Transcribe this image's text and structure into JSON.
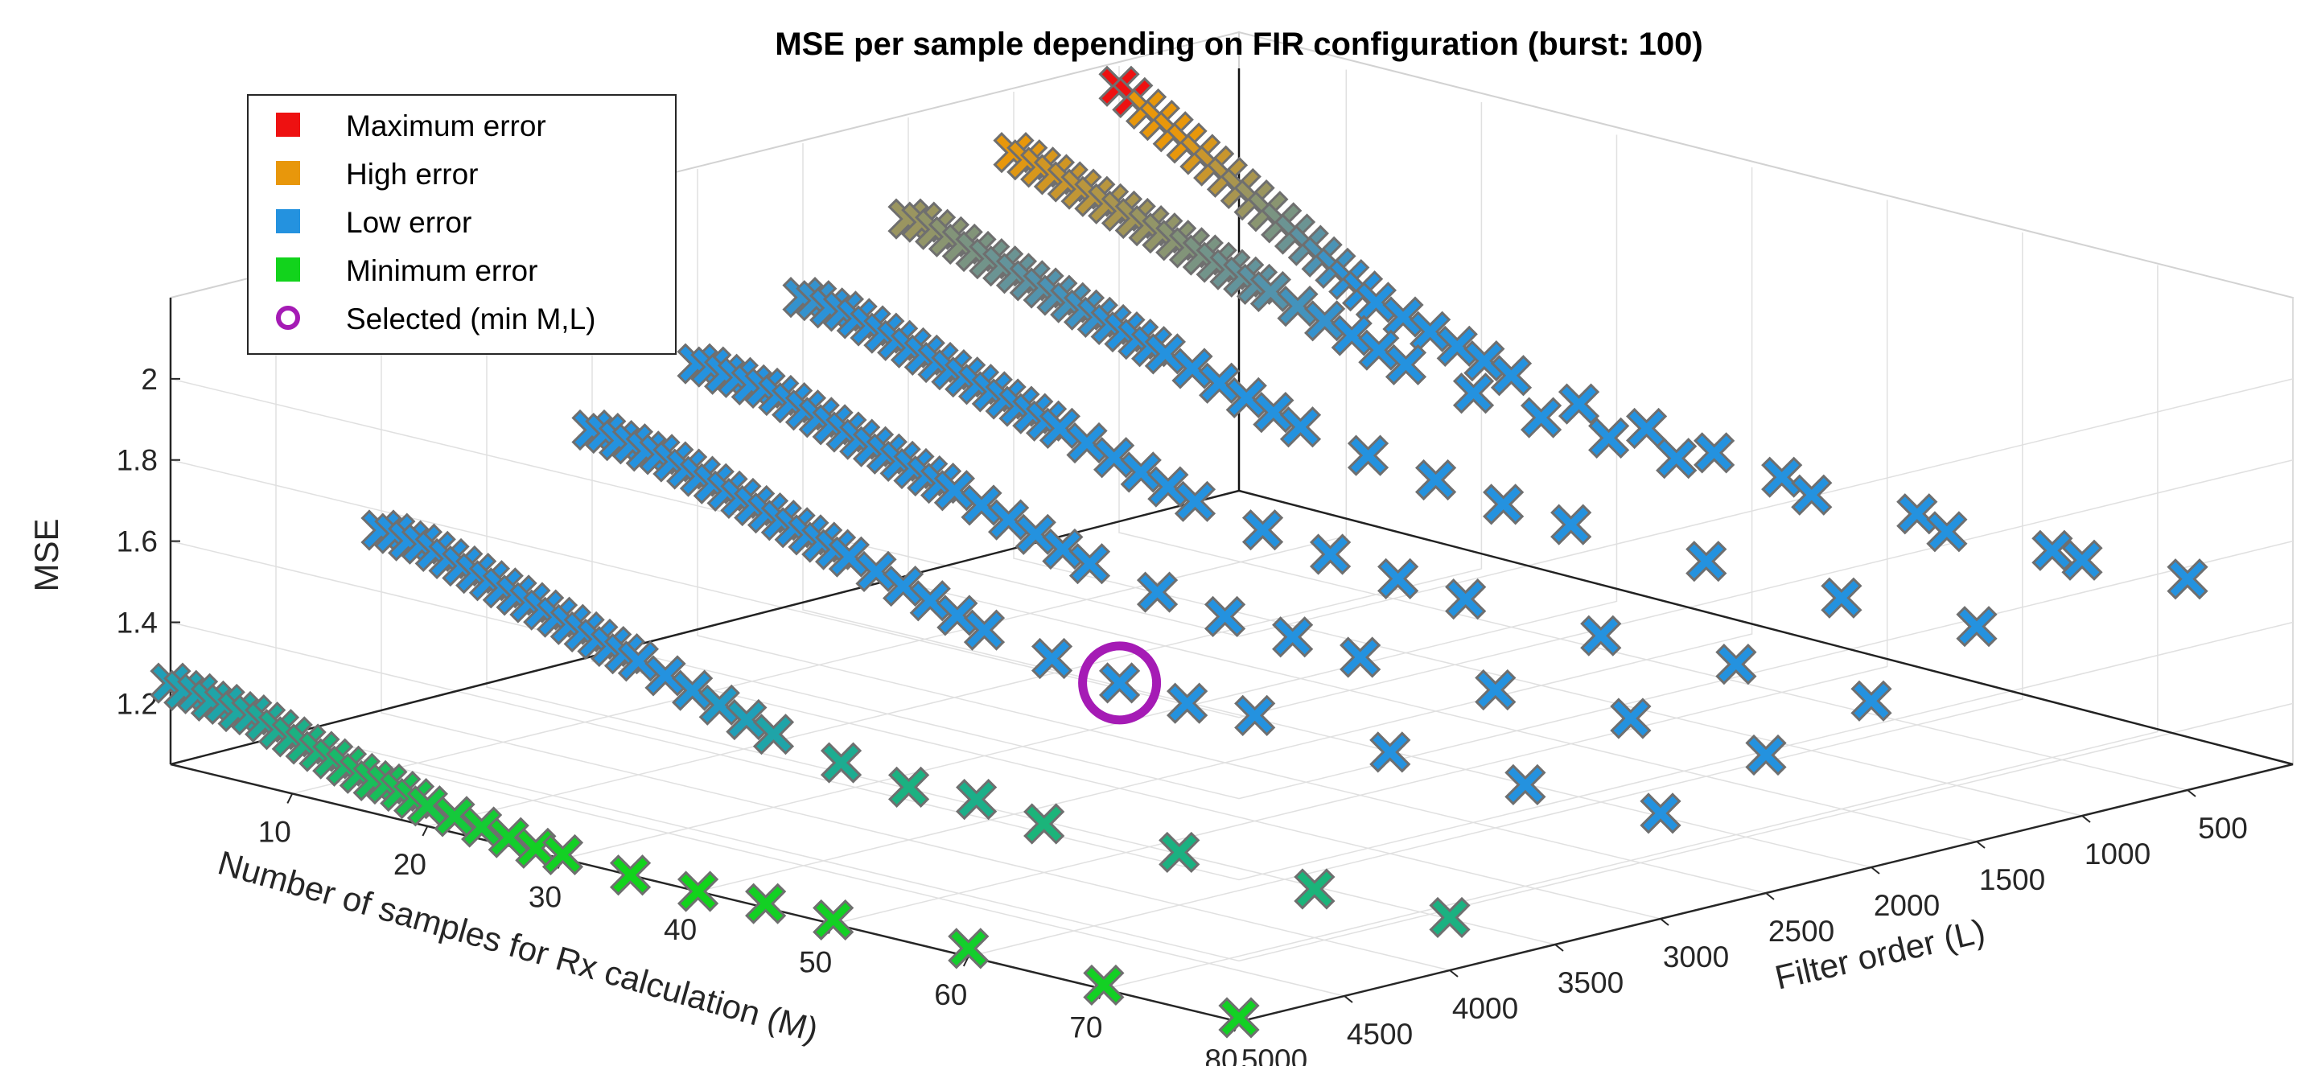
{
  "chart_data": {
    "type": "scatter",
    "title": "MSE per sample depending on FIR configuration (burst: 100)",
    "xlabel": "Number of samples for Rx calculation (M)",
    "ylabel": "Filter order (L)",
    "zlabel": "MSE",
    "x_ticks": [
      "10",
      "20",
      "30",
      "40",
      "50",
      "60",
      "70",
      "80"
    ],
    "y_ticks": [
      "500",
      "1000",
      "1500",
      "2000",
      "2500",
      "3000",
      "3500",
      "4000",
      "4500",
      "5000"
    ],
    "z_ticks": [
      "1.2",
      "1.4",
      "1.6",
      "1.8",
      "2"
    ],
    "xlim": [
      1,
      80
    ],
    "ylim": [
      0,
      5000
    ],
    "zlim": [
      1.05,
      2.2
    ],
    "grid": true,
    "legend_position": "top-left",
    "marker": "x",
    "legend": [
      {
        "key": "max",
        "label": "Maximum error",
        "color": "#ee1111",
        "symbol": "square"
      },
      {
        "key": "high",
        "label": "High error",
        "color": "#e8970b",
        "symbol": "square"
      },
      {
        "key": "low",
        "label": "Low error",
        "color": "#2492df",
        "symbol": "square"
      },
      {
        "key": "min",
        "label": "Minimum error",
        "color": "#12d31c",
        "symbol": "square"
      },
      {
        "key": "selected",
        "label": "Selected (min M,L)",
        "color": "#a51bb5",
        "symbol": "circle"
      }
    ],
    "colors": {
      "max": "#ee1111",
      "high": "#e8970b",
      "low": "#2492df",
      "min": "#12d31c",
      "selected": "#a51bb5"
    },
    "M_values": [
      1,
      2,
      3,
      4,
      5,
      6,
      7,
      8,
      9,
      10,
      11,
      12,
      13,
      14,
      15,
      16,
      17,
      18,
      19,
      20,
      22,
      24,
      26,
      28,
      30,
      35,
      40,
      45,
      50,
      60,
      70,
      80
    ],
    "L_values": [
      5000,
      4000,
      3000,
      2500,
      2000,
      1500,
      1000,
      500
    ],
    "series": [
      {
        "L": 5000,
        "mse": [
          1.25,
          1.24,
          1.24,
          1.23,
          1.23,
          1.22,
          1.22,
          1.21,
          1.2,
          1.19,
          1.18,
          1.17,
          1.16,
          1.15,
          1.14,
          1.13,
          1.13,
          1.12,
          1.11,
          1.1,
          1.09,
          1.08,
          1.07,
          1.06,
          1.06,
          1.05,
          1.05,
          1.06,
          1.06,
          1.07,
          1.06,
          1.06
        ]
      },
      {
        "L": 4000,
        "mse": [
          1.5,
          1.5,
          1.49,
          1.49,
          1.48,
          1.47,
          1.46,
          1.45,
          1.44,
          1.43,
          1.42,
          1.41,
          1.4,
          1.39,
          1.38,
          1.37,
          1.36,
          1.35,
          1.34,
          1.33,
          1.31,
          1.29,
          1.27,
          1.25,
          1.23,
          1.2,
          1.18,
          1.19,
          1.17,
          1.18,
          1.17,
          1.18
        ]
      },
      {
        "L": 3000,
        "mse": [
          1.62,
          1.62,
          1.61,
          1.61,
          1.6,
          1.6,
          1.59,
          1.58,
          1.57,
          1.56,
          1.55,
          1.54,
          1.53,
          1.52,
          1.51,
          1.5,
          1.49,
          1.48,
          1.47,
          1.46,
          1.44,
          1.42,
          1.4,
          1.38,
          1.36,
          1.33,
          1.31,
          1.3,
          1.31,
          1.3,
          1.3,
          1.31
        ]
      },
      {
        "L": 2500,
        "mse": [
          1.72,
          1.72,
          1.71,
          1.71,
          1.7,
          1.7,
          1.69,
          1.68,
          1.67,
          1.66,
          1.65,
          1.64,
          1.63,
          1.62,
          1.61,
          1.6,
          1.59,
          1.58,
          1.57,
          1.56,
          1.54,
          1.52,
          1.5,
          1.48,
          1.46,
          1.43,
          1.41,
          1.4,
          1.39,
          1.39,
          1.4,
          1.39
        ]
      },
      {
        "L": 2000,
        "mse": [
          1.82,
          1.82,
          1.81,
          1.81,
          1.8,
          1.79,
          1.78,
          1.77,
          1.76,
          1.75,
          1.74,
          1.73,
          1.72,
          1.71,
          1.7,
          1.69,
          1.68,
          1.67,
          1.66,
          1.65,
          1.63,
          1.61,
          1.59,
          1.57,
          1.55,
          1.52,
          1.5,
          1.48,
          1.47,
          1.46,
          1.47,
          1.46
        ]
      },
      {
        "L": 1500,
        "mse": [
          1.95,
          1.95,
          1.94,
          1.93,
          1.92,
          1.91,
          1.9,
          1.89,
          1.88,
          1.87,
          1.86,
          1.85,
          1.84,
          1.83,
          1.82,
          1.81,
          1.8,
          1.79,
          1.78,
          1.77,
          1.75,
          1.73,
          1.71,
          1.69,
          1.67,
          1.64,
          1.62,
          1.6,
          1.59,
          1.58,
          1.57,
          1.58
        ]
      },
      {
        "L": 1000,
        "mse": [
          2.05,
          2.04,
          2.03,
          2.02,
          2.01,
          2.0,
          1.99,
          1.98,
          1.97,
          1.96,
          1.95,
          1.94,
          1.93,
          1.92,
          1.91,
          1.9,
          1.89,
          1.88,
          1.87,
          1.86,
          1.84,
          1.82,
          1.8,
          1.78,
          1.76,
          1.73,
          1.71,
          1.7,
          1.69,
          1.68,
          1.67,
          1.68
        ]
      },
      {
        "L": 500,
        "mse": [
          2.15,
          2.13,
          2.11,
          2.09,
          2.07,
          2.05,
          2.03,
          2.01,
          1.99,
          1.97,
          1.95,
          1.93,
          1.91,
          1.89,
          1.87,
          1.85,
          1.83,
          1.81,
          1.79,
          1.77,
          1.75,
          1.73,
          1.71,
          1.69,
          1.67,
          1.64,
          1.62,
          1.6,
          1.58,
          1.57,
          1.56,
          1.57
        ]
      }
    ],
    "maximum_point": {
      "M": 1,
      "L": 500,
      "mse": 2.15
    },
    "selected_point": {
      "M": 40,
      "L": 3000,
      "mse": 1.31
    }
  }
}
